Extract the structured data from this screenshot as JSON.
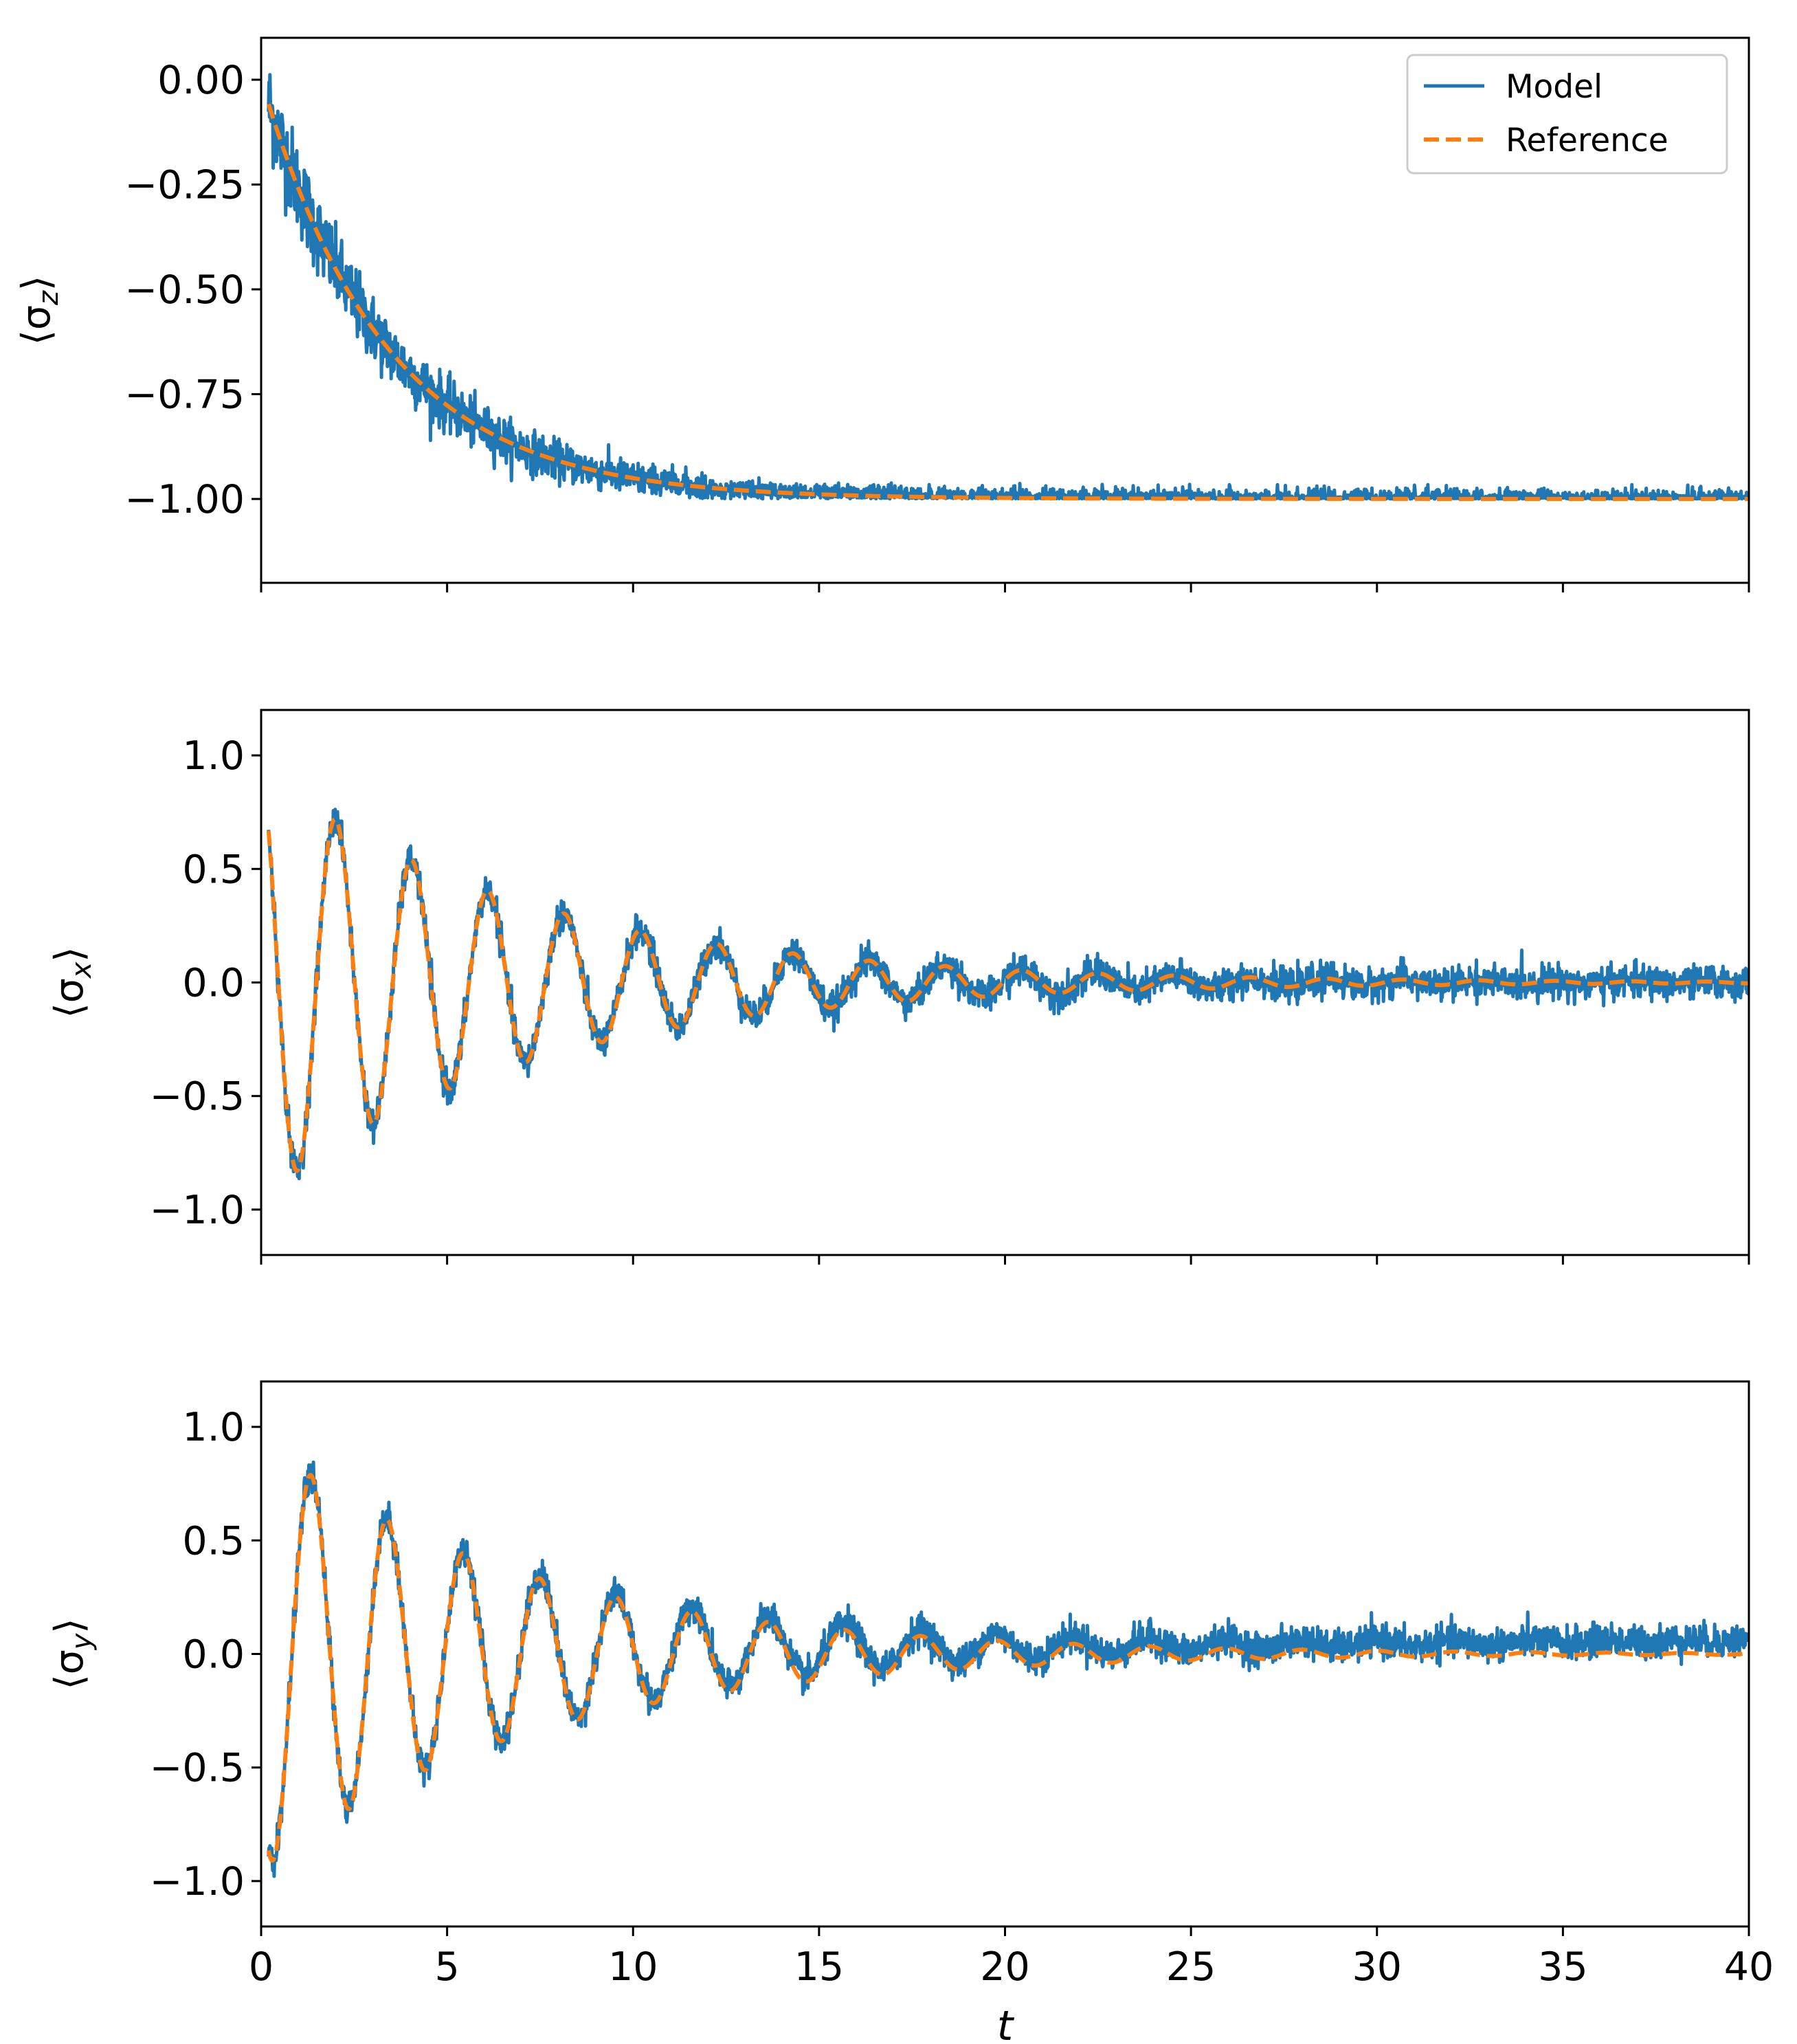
{
  "chart_data": [
    {
      "type": "line",
      "id": "sz",
      "ylabel": "⟨σz⟩",
      "ylabel_base": "⟨σ",
      "ylabel_sub": "z",
      "ylabel_end": "⟩",
      "xlim": [
        0,
        40
      ],
      "ylim": [
        -1.2,
        0.1
      ],
      "yticks": [
        0.0,
        -0.25,
        -0.5,
        -0.75,
        -1.0
      ],
      "ytick_labels": [
        "0.00",
        "−0.25",
        "−0.50",
        "−0.75",
        "−1.00"
      ],
      "xticks": [
        0,
        5,
        10,
        15,
        20,
        25,
        30,
        35,
        40
      ],
      "show_xtick_labels": false,
      "legend": {
        "entries": [
          "Model",
          "Reference"
        ],
        "position": "top-right"
      },
      "series": [
        {
          "name": "Model",
          "color": "#1f77b4",
          "style": "solid",
          "function": "exp_decay",
          "start": 0.0,
          "end": -1.0,
          "rate": 0.3,
          "noise_start": 0.06,
          "noise_end": 0.012
        },
        {
          "name": "Reference",
          "color": "#ff7f0e",
          "style": "dashed",
          "function": "exp_decay",
          "start": 0.0,
          "end": -1.0,
          "rate": 0.3
        }
      ]
    },
    {
      "type": "line",
      "id": "sx",
      "ylabel": "⟨σx⟩",
      "ylabel_base": "⟨σ",
      "ylabel_sub": "x",
      "ylabel_end": "⟩",
      "xlim": [
        0,
        40
      ],
      "ylim": [
        -1.2,
        1.2
      ],
      "yticks": [
        1.0,
        0.5,
        0.0,
        -0.5,
        -1.0
      ],
      "ytick_labels": [
        "1.0",
        "0.5",
        "0.0",
        "−0.5",
        "−1.0"
      ],
      "xticks": [
        0,
        5,
        10,
        15,
        20,
        25,
        30,
        35,
        40
      ],
      "show_xtick_labels": false,
      "series": [
        {
          "name": "Model",
          "color": "#1f77b4",
          "style": "solid",
          "function": "damped_cos",
          "amplitude": 0.95,
          "period": 2.05,
          "decay": 0.14,
          "phase": 0.15,
          "noise": 0.035
        },
        {
          "name": "Reference",
          "color": "#ff7f0e",
          "style": "dashed",
          "function": "damped_cos",
          "amplitude": 0.95,
          "period": 2.05,
          "decay": 0.14,
          "phase": 0.15
        }
      ]
    },
    {
      "type": "line",
      "id": "sy",
      "ylabel": "⟨σy⟩",
      "ylabel_base": "⟨σ",
      "ylabel_sub": "y",
      "ylabel_end": "⟩",
      "xlim": [
        0,
        40
      ],
      "ylim": [
        -1.2,
        1.2
      ],
      "yticks": [
        1.0,
        0.5,
        0.0,
        -0.5,
        -1.0
      ],
      "ytick_labels": [
        "1.0",
        "0.5",
        "0.0",
        "−0.5",
        "−1.0"
      ],
      "xticks": [
        0,
        5,
        10,
        15,
        20,
        25,
        30,
        35,
        40
      ],
      "xtick_labels": [
        "0",
        "5",
        "10",
        "15",
        "20",
        "25",
        "30",
        "35",
        "40"
      ],
      "show_xtick_labels": true,
      "xlabel": "t",
      "series": [
        {
          "name": "Model",
          "color": "#1f77b4",
          "style": "solid",
          "function": "damped_sin",
          "amplitude": -0.95,
          "period": 2.05,
          "decay": 0.14,
          "phase": 0.6,
          "noise": 0.035,
          "drift": 0.06
        },
        {
          "name": "Reference",
          "color": "#ff7f0e",
          "style": "dashed",
          "function": "damped_sin",
          "amplitude": -0.95,
          "period": 2.05,
          "decay": 0.14,
          "phase": 0.6
        }
      ]
    }
  ]
}
